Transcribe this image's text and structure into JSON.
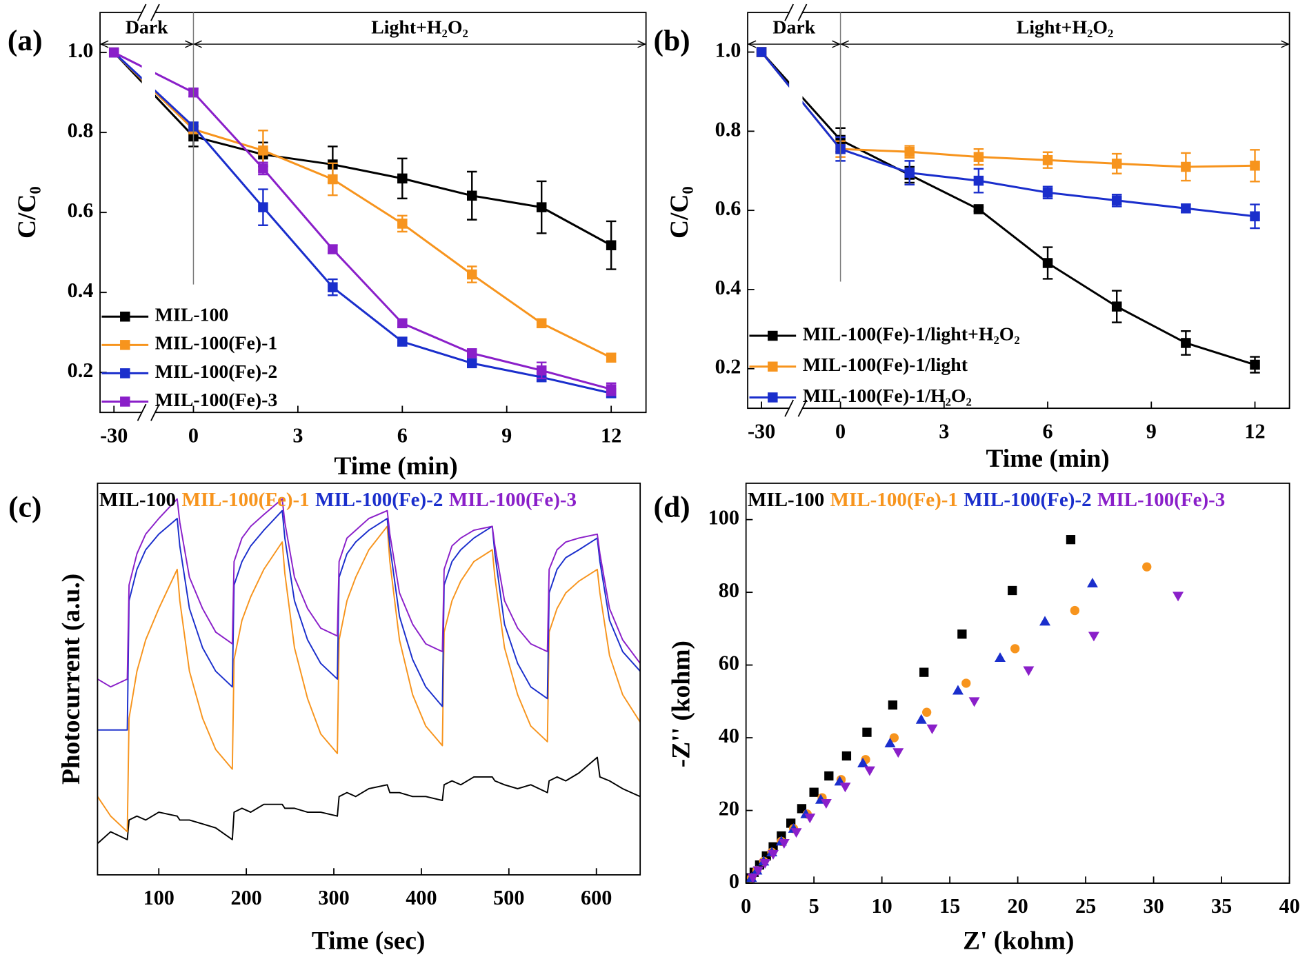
{
  "chart_data": [
    {
      "type": "line",
      "panel_label": "(a)",
      "xlabel": "Time (min)",
      "ylabel": "C/C₀",
      "xlim": [
        -30.4,
        13
      ],
      "xbreak": [
        -29.2,
        -1.1
      ],
      "xticks": [
        -30,
        0,
        3,
        6,
        9,
        12
      ],
      "ylim": [
        0.1,
        1.1
      ],
      "yticks": [
        0.2,
        0.4,
        0.6,
        0.8,
        {
          "value": 1,
          "label": "1.0"
        }
      ],
      "vline": 0,
      "annotations": [
        {
          "text": "Dark"
        },
        {
          "text": "Light+H₂O₂"
        }
      ],
      "legend": "lower left",
      "x": [
        -30,
        0,
        2,
        4,
        6,
        8,
        10,
        12
      ],
      "series": [
        {
          "name": "MIL-100",
          "color": "#000000",
          "marker": "square",
          "values": [
            1.0,
            0.79,
            0.745,
            0.72,
            0.685,
            0.642,
            0.613,
            0.518
          ],
          "errors": [
            0,
            0.025,
            0.03,
            0.045,
            0.05,
            0.06,
            0.065,
            0.06
          ]
        },
        {
          "name": "MIL-100(Fe)-1",
          "color": "#f7941d",
          "marker": "square",
          "values": [
            1.0,
            0.808,
            0.755,
            0.683,
            0.572,
            0.445,
            0.323,
            0.237
          ],
          "errors": [
            0,
            0.01,
            0.05,
            0.04,
            0.02,
            0.02,
            0.01,
            0.01
          ]
        },
        {
          "name": "MIL-100(Fe)-2",
          "color": "#1a2ecc",
          "marker": "square",
          "values": [
            1.0,
            0.815,
            0.613,
            0.413,
            0.277,
            0.223,
            0.188,
            0.148
          ],
          "errors": [
            0,
            0.01,
            0.045,
            0.02,
            0.01,
            0.01,
            0.01,
            0.01
          ]
        },
        {
          "name": "MIL-100(Fe)-3",
          "color": "#8a1fc9",
          "marker": "square",
          "values": [
            1.0,
            0.9,
            0.71,
            0.508,
            0.323,
            0.248,
            0.205,
            0.158
          ],
          "errors": [
            0,
            0.01,
            0.015,
            0.01,
            0.01,
            0.01,
            0.02,
            0.015
          ]
        }
      ]
    },
    {
      "type": "line",
      "panel_label": "(b)",
      "xlabel": "Time (min)",
      "ylabel": "C/C₀",
      "xlim": [
        -30.4,
        13
      ],
      "xbreak": [
        -29.2,
        -1.1
      ],
      "xticks": [
        -30,
        0,
        3,
        6,
        9,
        12
      ],
      "ylim": [
        0.1,
        1.1
      ],
      "yticks": [
        0.2,
        0.4,
        0.6,
        0.8,
        {
          "value": 1,
          "label": "1.0"
        }
      ],
      "vline": 0,
      "annotations": [
        {
          "text": "Dark"
        },
        {
          "text": "Light+H₂O₂"
        }
      ],
      "legend": "lower left",
      "x": [
        -30,
        0,
        2,
        4,
        6,
        8,
        10,
        12
      ],
      "series": [
        {
          "name": "MIL-100(Fe)-1/light+H₂O₂",
          "color": "#000000",
          "marker": "square",
          "values": [
            1.0,
            0.778,
            0.69,
            0.603,
            0.467,
            0.357,
            0.265,
            0.21
          ],
          "errors": [
            0,
            0.03,
            0.02,
            0.005,
            0.04,
            0.04,
            0.03,
            0.02
          ]
        },
        {
          "name": "MIL-100(Fe)-1/light",
          "color": "#f7941d",
          "marker": "square",
          "values": [
            1.0,
            0.755,
            0.748,
            0.735,
            0.727,
            0.718,
            0.71,
            0.713
          ],
          "errors": [
            0,
            0.02,
            0.015,
            0.02,
            0.02,
            0.025,
            0.035,
            0.04
          ]
        },
        {
          "name": "MIL-100(Fe)-1/H₂O₂",
          "color": "#1a2ecc",
          "marker": "square",
          "values": [
            1.0,
            0.755,
            0.695,
            0.675,
            0.645,
            0.625,
            0.605,
            0.585
          ],
          "errors": [
            0,
            0.03,
            0.03,
            0.03,
            0.015,
            0.015,
            0.01,
            0.03
          ]
        }
      ]
    },
    {
      "type": "line",
      "panel_label": "(c)",
      "xlabel": "Time (sec)",
      "ylabel": "Photocurrent (a.u.)",
      "xlim": [
        30,
        650
      ],
      "xticks": [
        100,
        200,
        300,
        400,
        500,
        600
      ],
      "ylim": [
        0,
        100
      ],
      "legend": "top",
      "x": [
        30,
        45,
        64,
        66,
        75,
        85,
        100,
        121,
        124,
        135,
        150,
        165,
        184,
        186,
        195,
        205,
        220,
        241,
        244,
        255,
        270,
        285,
        304,
        306,
        315,
        325,
        340,
        361,
        364,
        375,
        390,
        405,
        424,
        426,
        435,
        445,
        460,
        481,
        484,
        495,
        510,
        525,
        544,
        546,
        555,
        565,
        580,
        601,
        604,
        615,
        630,
        650
      ],
      "series": [
        {
          "name": "MIL-100",
          "color": "#000000",
          "values": [
            8,
            11,
            9,
            14,
            15,
            14,
            16,
            15,
            14,
            14,
            13,
            12,
            9,
            16,
            17,
            16,
            18,
            18,
            17,
            17,
            16,
            16,
            15,
            20,
            21,
            20,
            22,
            23,
            21,
            21,
            20,
            20,
            19,
            23,
            24,
            23,
            25,
            25,
            24,
            23,
            22,
            23,
            21,
            24,
            25,
            24,
            26,
            30,
            25,
            24,
            22,
            20
          ]
        },
        {
          "name": "MIL-100(Fe)-1",
          "color": "#f7941d",
          "values": [
            20,
            15,
            11,
            40,
            52,
            60,
            68,
            78,
            70,
            52,
            40,
            32,
            27,
            55,
            65,
            71,
            78,
            85,
            77,
            58,
            45,
            36,
            31,
            60,
            70,
            76,
            83,
            89,
            80,
            60,
            46,
            38,
            33,
            62,
            70,
            75,
            80,
            83,
            76,
            58,
            46,
            38,
            34,
            62,
            68,
            72,
            75,
            78,
            72,
            56,
            46,
            39
          ]
        },
        {
          "name": "MIL-100(Fe)-2",
          "color": "#1a2ecc",
          "values": [
            37,
            37,
            37,
            70,
            78,
            83,
            87,
            91,
            84,
            68,
            58,
            52,
            48,
            74,
            80,
            84,
            88,
            93,
            86,
            70,
            60,
            54,
            50,
            76,
            82,
            85,
            88,
            91,
            84,
            66,
            55,
            48,
            43,
            74,
            80,
            83,
            86,
            89,
            82,
            64,
            54,
            48,
            45,
            72,
            78,
            81,
            83,
            86,
            80,
            65,
            57,
            52
          ]
        },
        {
          "name": "MIL-100(Fe)-3",
          "color": "#8a1fc9",
          "values": [
            50,
            48,
            50,
            74,
            82,
            87,
            91,
            96,
            90,
            76,
            68,
            62,
            59,
            80,
            86,
            89,
            92,
            96,
            90,
            76,
            68,
            63,
            61,
            80,
            86,
            88,
            91,
            93,
            87,
            72,
            64,
            59,
            57,
            78,
            84,
            86,
            88,
            89,
            84,
            70,
            63,
            59,
            57,
            78,
            83,
            85,
            86,
            87,
            82,
            68,
            60,
            54
          ]
        }
      ]
    },
    {
      "type": "scatter",
      "panel_label": "(d)",
      "xlabel": "Z' (kohm)",
      "ylabel": "-Z'' (kohm)",
      "xlim": [
        0,
        40
      ],
      "xticks": [
        0,
        5,
        10,
        15,
        20,
        25,
        30,
        35,
        40
      ],
      "ylim": [
        0,
        110
      ],
      "yticks": [
        0,
        20,
        40,
        60,
        80,
        100
      ],
      "legend": "top",
      "series": [
        {
          "name": "MIL-100",
          "color": "#000000",
          "marker": "square",
          "x": [
            0.3,
            0.6,
            1,
            1.5,
            2,
            2.6,
            3.3,
            4.1,
            5,
            6.1,
            7.4,
            8.9,
            10.8,
            13.1,
            15.9,
            19.6,
            23.9
          ],
          "values": [
            1.5,
            3,
            5,
            7.5,
            10,
            13,
            16.5,
            20.5,
            25,
            29.5,
            35,
            41.5,
            49,
            58,
            68.5,
            80.5,
            94.5
          ]
        },
        {
          "name": "MIL-100(Fe)-1",
          "color": "#f7941d",
          "marker": "circle",
          "x": [
            0.4,
            0.8,
            1.3,
            1.9,
            2.6,
            3.5,
            4.5,
            5.6,
            7,
            8.8,
            10.9,
            13.3,
            16.2,
            19.8,
            24.2,
            29.5
          ],
          "values": [
            1.5,
            3.5,
            6,
            8.5,
            11.5,
            15,
            19,
            23.5,
            28.5,
            34,
            40,
            47,
            55,
            64.5,
            75,
            87
          ]
        },
        {
          "name": "MIL-100(Fe)-2",
          "color": "#1a2ecc",
          "marker": "triangle-up",
          "x": [
            0.4,
            0.8,
            1.3,
            1.9,
            2.6,
            3.5,
            4.4,
            5.5,
            6.9,
            8.6,
            10.6,
            12.9,
            15.6,
            18.7,
            22,
            25.5
          ],
          "values": [
            1.5,
            3.5,
            6,
            8.5,
            11.5,
            15,
            19,
            23,
            28,
            33,
            38.5,
            45,
            53,
            62,
            72,
            82.5
          ]
        },
        {
          "name": "MIL-100(Fe)-3",
          "color": "#8a1fc9",
          "marker": "triangle-down",
          "x": [
            0.5,
            0.9,
            1.4,
            2,
            2.8,
            3.7,
            4.7,
            5.9,
            7.3,
            9.1,
            11.2,
            13.7,
            16.8,
            20.8,
            25.6,
            31.8
          ],
          "values": [
            1.5,
            3.5,
            5.5,
            8,
            11,
            14,
            18,
            22,
            26.5,
            31,
            36,
            42.5,
            50,
            58.5,
            68,
            79
          ]
        }
      ]
    }
  ]
}
